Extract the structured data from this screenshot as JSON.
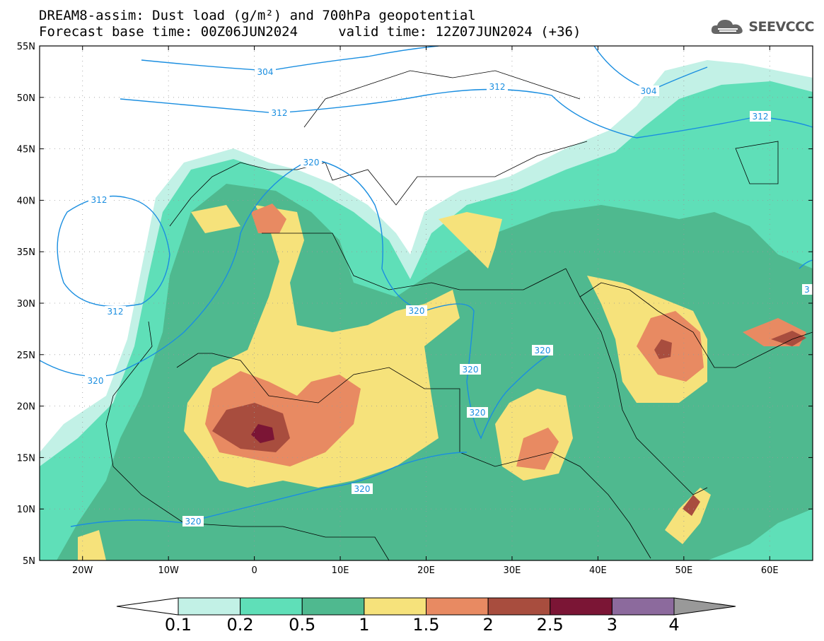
{
  "title": {
    "line1": "DREAM8-assim: Dust load (g/m²) and 700hPa geopotential",
    "line2": "Forecast base time: 00Z06JUN2024     valid time: 12Z07JUN2024 (+36)"
  },
  "logo": {
    "text": "SEEVCCC",
    "icon": "cloud-icon"
  },
  "axes": {
    "lon_ticks": [
      "20W",
      "10W",
      "0",
      "10E",
      "20E",
      "30E",
      "40E",
      "50E",
      "60E"
    ],
    "lat_ticks": [
      "55N",
      "50N",
      "45N",
      "40N",
      "35N",
      "30N",
      "25N",
      "20N",
      "15N",
      "10N",
      "5N"
    ],
    "lon_range": [
      -25,
      65
    ],
    "lat_range": [
      5,
      55
    ]
  },
  "contours": [
    {
      "value": "304"
    },
    {
      "value": "304"
    },
    {
      "value": "312"
    },
    {
      "value": "312"
    },
    {
      "value": "312"
    },
    {
      "value": "312"
    },
    {
      "value": "312"
    },
    {
      "value": "320"
    },
    {
      "value": "320"
    },
    {
      "value": "320"
    },
    {
      "value": "320"
    },
    {
      "value": "320"
    },
    {
      "value": "320"
    },
    {
      "value": "320"
    },
    {
      "value": "320"
    },
    {
      "value": "3"
    }
  ],
  "colorbar": {
    "labels": [
      "0.1",
      "0.2",
      "0.5",
      "1",
      "1.5",
      "2",
      "2.5",
      "3",
      "4"
    ],
    "colors": [
      "#c2f1e6",
      "#5fdfb8",
      "#4fb98f",
      "#f6e27b",
      "#e88a62",
      "#a84d3e",
      "#7b1535",
      "#8c6a9d"
    ]
  }
}
